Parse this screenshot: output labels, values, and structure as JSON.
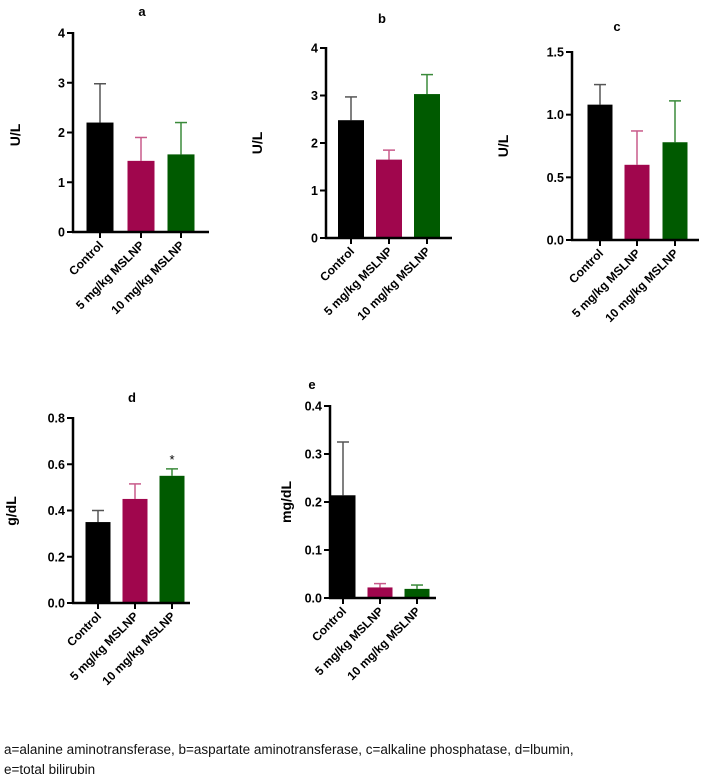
{
  "chart_data": [
    {
      "type": "bar",
      "title": "a",
      "ylabel": "U/L",
      "ylim": [
        0,
        4
      ],
      "yticks": [
        "0",
        "1",
        "2",
        "3",
        "4"
      ],
      "ytick_values": [
        0,
        1,
        2,
        3,
        4
      ],
      "categories": [
        "Control",
        "5 mg/kg MSLNP",
        "10 mg/kg MSLNP"
      ],
      "values": [
        2.2,
        1.43,
        1.56
      ],
      "errors": [
        0.78,
        0.47,
        0.64
      ],
      "annotations": [
        "",
        "",
        ""
      ]
    },
    {
      "type": "bar",
      "title": "b",
      "ylabel": "U/L",
      "ylim": [
        0,
        4
      ],
      "yticks": [
        "0",
        "1",
        "2",
        "3",
        "4"
      ],
      "ytick_values": [
        0,
        1,
        2,
        3,
        4
      ],
      "categories": [
        "Control",
        "5 mg/kg MSLNP",
        "10 mg/kg MSLNP"
      ],
      "values": [
        2.48,
        1.65,
        3.03
      ],
      "errors": [
        0.49,
        0.2,
        0.41
      ],
      "annotations": [
        "",
        "",
        ""
      ]
    },
    {
      "type": "bar",
      "title": "c",
      "ylabel": "U/L",
      "ylim": [
        0,
        1.5
      ],
      "yticks": [
        "0.0",
        "0.5",
        "1.0",
        "1.5"
      ],
      "ytick_values": [
        0,
        0.5,
        1,
        1.5
      ],
      "categories": [
        "Control",
        "5 mg/kg MSLNP",
        "10 mg/kg MSLNP"
      ],
      "values": [
        1.08,
        0.6,
        0.78
      ],
      "errors": [
        0.16,
        0.27,
        0.33
      ],
      "annotations": [
        "",
        "",
        ""
      ]
    },
    {
      "type": "bar",
      "title": "d",
      "ylabel": "g/dL",
      "ylim": [
        0,
        0.8
      ],
      "yticks": [
        "0.0",
        "0.2",
        "0.4",
        "0.6",
        "0.8"
      ],
      "ytick_values": [
        0,
        0.2,
        0.4,
        0.6,
        0.8
      ],
      "categories": [
        "Control",
        "5 mg/kg MSLNP",
        "10 mg/kg MSLNP"
      ],
      "values": [
        0.35,
        0.45,
        0.55
      ],
      "errors": [
        0.05,
        0.065,
        0.03
      ],
      "annotations": [
        "",
        "",
        "*"
      ]
    },
    {
      "type": "bar",
      "title": "e",
      "ylabel": "mg/dL",
      "ylim": [
        0,
        0.4
      ],
      "yticks": [
        "0.0",
        "0.1",
        "0.2",
        "0.3",
        "0.4"
      ],
      "ytick_values": [
        0,
        0.1,
        0.2,
        0.3,
        0.4
      ],
      "categories": [
        "Control",
        "5 mg/kg MSLNP",
        "10 mg/kg MSLNP"
      ],
      "values": [
        0.214,
        0.022,
        0.019
      ],
      "errors": [
        0.111,
        0.008,
        0.008
      ],
      "annotations": [
        "",
        "",
        ""
      ]
    }
  ],
  "colors": {
    "control": "#000000",
    "low_dose": "#a0064d",
    "high_dose": "#005a00",
    "error_control": "#555555",
    "error_low": "#c85a8a",
    "error_high": "#3a8a3a"
  },
  "caption": {
    "line1": "a=alanine aminotransferase, b=aspartate aminotransferase, c=alkaline phosphatase, d=lbumin,",
    "line2": "e=total bilirubin"
  }
}
